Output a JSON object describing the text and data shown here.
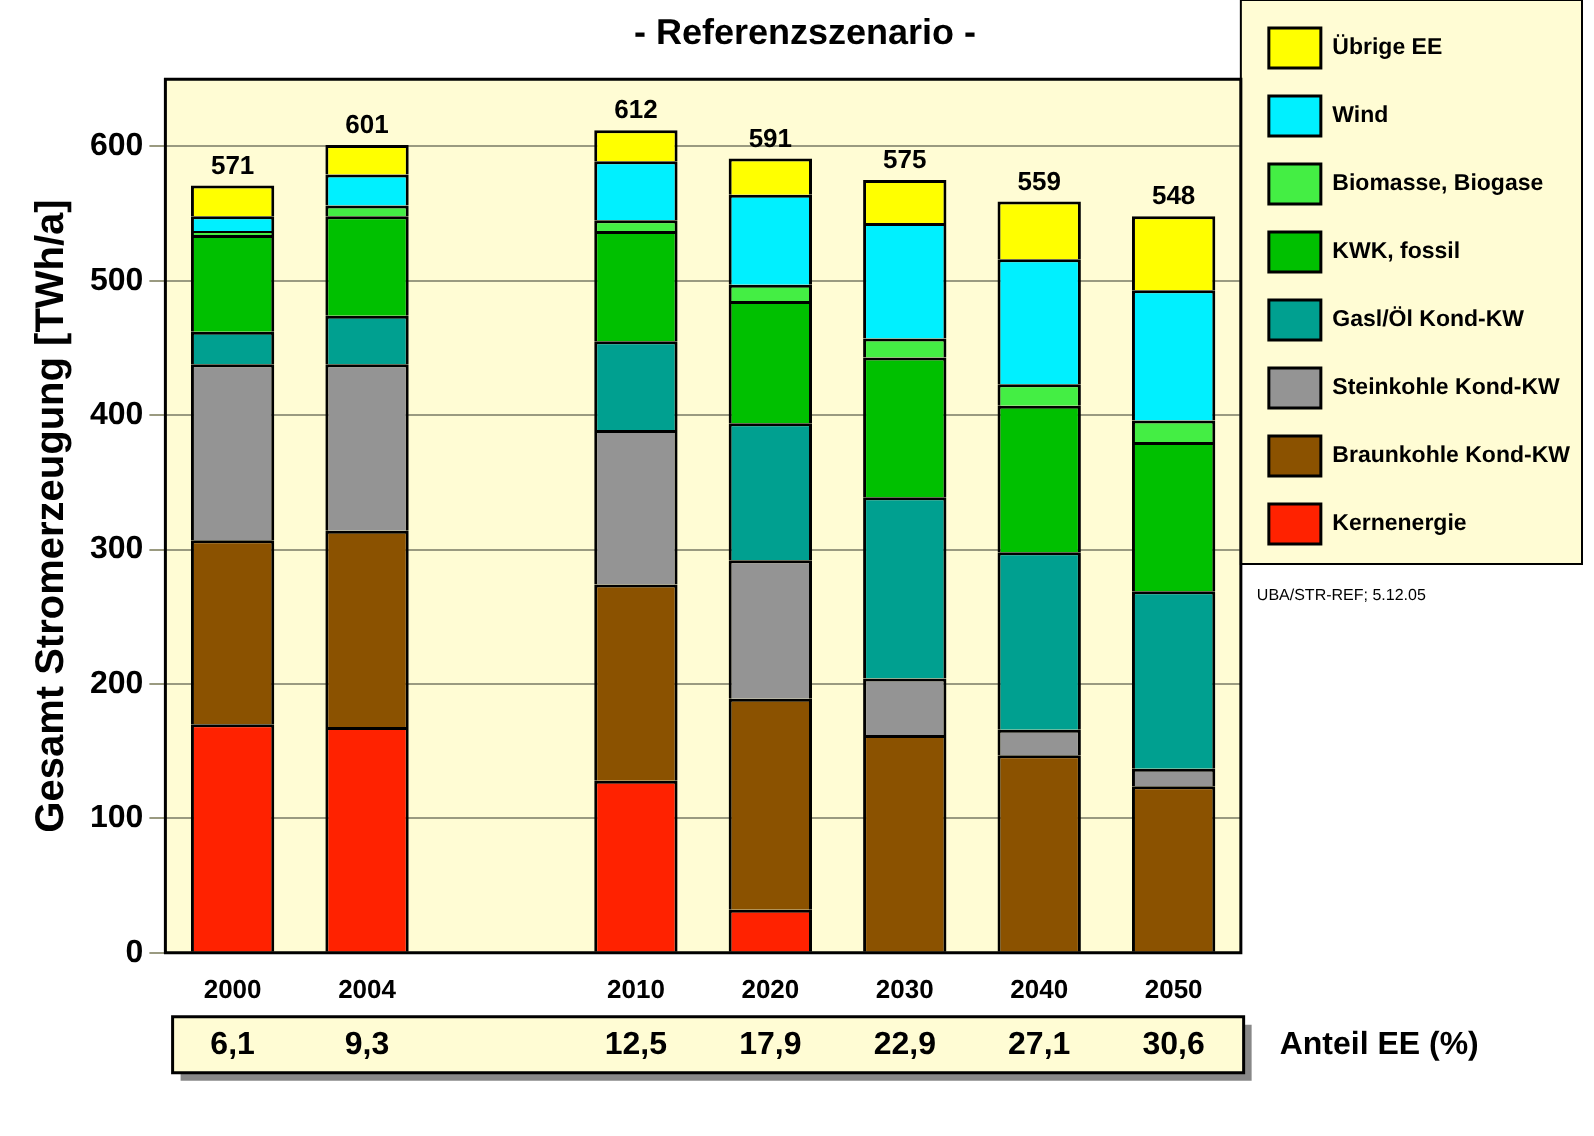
{
  "chart_data": {
    "type": "bar",
    "title": "- Referenzszenario -",
    "ylabel": "Gesamt Stromerzeugung [TWh/a]",
    "stacked": true,
    "categories": [
      "2000",
      "2004",
      null,
      "2010",
      "2020",
      "2030",
      "2040",
      "2050"
    ],
    "series": [
      {
        "name": "Kernenergie",
        "color": "#ff2200",
        "values": [
          170,
          168,
          null,
          128,
          32,
          0,
          0,
          0
        ]
      },
      {
        "name": "Braunkohle Kond-KW",
        "color": "#8b5200",
        "values": [
          137,
          146,
          null,
          146,
          157,
          162,
          147,
          124
        ]
      },
      {
        "name": "Steinkohle Kond-KW",
        "color": "#949494",
        "values": [
          131,
          124,
          null,
          115,
          103,
          42,
          19,
          13
        ]
      },
      {
        "name": "Gasl/Öl Kond-KW",
        "color": "#00a090",
        "values": [
          24,
          36,
          null,
          66,
          102,
          135,
          132,
          132
        ]
      },
      {
        "name": "KWK, fossil",
        "color": "#00c000",
        "values": [
          72,
          74,
          null,
          82,
          91,
          104,
          109,
          111
        ]
      },
      {
        "name": "Biomasse, Biogase",
        "color": "#44ee44",
        "values": [
          3,
          8,
          null,
          8,
          12,
          14,
          16,
          16
        ]
      },
      {
        "name": "Wind",
        "color": "#00f0ff",
        "values": [
          11,
          23,
          null,
          44,
          67,
          86,
          93,
          97
        ]
      },
      {
        "name": "Übrige EE",
        "color": "#ffff00",
        "values": [
          23,
          22,
          null,
          23,
          27,
          32,
          43,
          55
        ]
      }
    ],
    "totals": [
      "571",
      "601",
      null,
      "612",
      "591",
      "575",
      "559",
      "548"
    ],
    "ylim": [
      0,
      650
    ],
    "yticks": [
      0,
      100,
      200,
      300,
      400,
      500,
      600
    ],
    "grid": "y",
    "legend": "right",
    "annotations": [
      "6,1",
      "9,3",
      "12,5",
      "17,9",
      "22,9",
      "27,1",
      "30,6",
      "Anteil EE (%)",
      "UBA/STR-REF; 5.12.05"
    ]
  }
}
